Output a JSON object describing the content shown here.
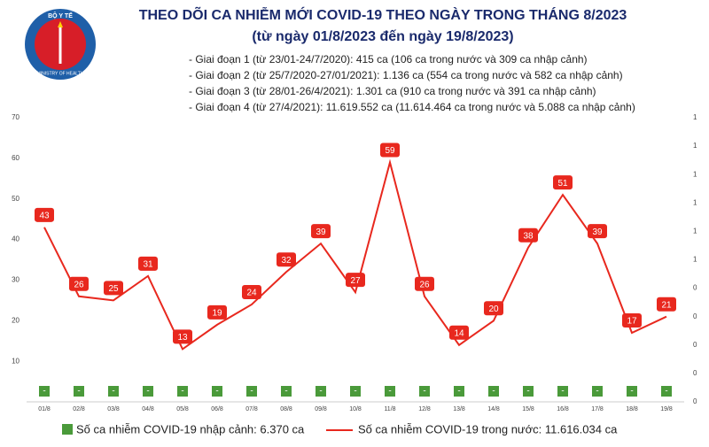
{
  "logo": {
    "top": "BỘ Y TẾ",
    "bottom": "MINISTRY OF HEALTH"
  },
  "chart_data": {
    "type": "line",
    "title": "THEO DÕI CA NHIỄM MỚI COVID-19 THEO NGÀY TRONG THÁNG 8/2023",
    "subtitle": "(từ ngày 01/8/2023 đến ngày 19/8/2023)",
    "annotations": [
      "- Giai đoạn 1 (từ 23/01-24/7/2020): 415 ca (106 ca trong nước và 309 ca nhập cảnh)",
      "- Giai đoạn 2 (từ 25/7/2020-27/01/2021): 1.136 ca (554 ca trong nước và 582 ca nhập cảnh)",
      "- Giai đoạn 3 (từ 28/01-26/4/2021): 1.301 ca (910 ca trong nước và 391 ca nhập cảnh)",
      "- Giai đoạn 4 (từ 27/4/2021): 11.619.552 ca (11.614.464 ca trong nước và 5.088 ca nhập cảnh)"
    ],
    "categories": [
      "01/8",
      "02/8",
      "03/8",
      "04/8",
      "05/8",
      "06/8",
      "07/8",
      "08/8",
      "09/8",
      "10/8",
      "11/8",
      "12/8",
      "13/8",
      "14/8",
      "15/8",
      "16/8",
      "17/8",
      "18/8",
      "19/8"
    ],
    "series": [
      {
        "name": "Số ca nhiễm COVID-19 nhập cảnh: 6.370 ca",
        "color": "#4a9a3a",
        "axis": "y2",
        "values": [
          0,
          0,
          0,
          0,
          0,
          0,
          0,
          0,
          0,
          0,
          0,
          0,
          0,
          0,
          0,
          0,
          0,
          0,
          0
        ],
        "value_labels": [
          "-",
          "-",
          "-",
          "-",
          "-",
          "-",
          "-",
          "-",
          "-",
          "-",
          "-",
          "-",
          "-",
          "-",
          "-",
          "-",
          "-",
          "-",
          "-"
        ]
      },
      {
        "name": "Số ca nhiễm COVID-19 trong nước: 11.616.034 ca",
        "color": "#e8281e",
        "values": [
          43,
          26,
          25,
          31,
          13,
          19,
          24,
          32,
          39,
          27,
          59,
          26,
          14,
          20,
          38,
          51,
          39,
          17,
          21
        ]
      }
    ],
    "ylim": [
      0,
      70
    ],
    "yticks": [
      10,
      20,
      30,
      40,
      50,
      60,
      70
    ],
    "y2lim": [
      0,
      1
    ],
    "y2ticks": [
      {
        "value": 0,
        "label": "0"
      },
      {
        "value": 0.1,
        "label": "0"
      },
      {
        "value": 0.2,
        "label": "0"
      },
      {
        "value": 0.3,
        "label": "0"
      },
      {
        "value": 0.4,
        "label": "0"
      },
      {
        "value": 0.5,
        "label": "1"
      },
      {
        "value": 0.6,
        "label": "1"
      },
      {
        "value": 0.7,
        "label": "1"
      },
      {
        "value": 0.8,
        "label": "1"
      },
      {
        "value": 0.9,
        "label": "1"
      },
      {
        "value": 1,
        "label": "1"
      }
    ]
  }
}
